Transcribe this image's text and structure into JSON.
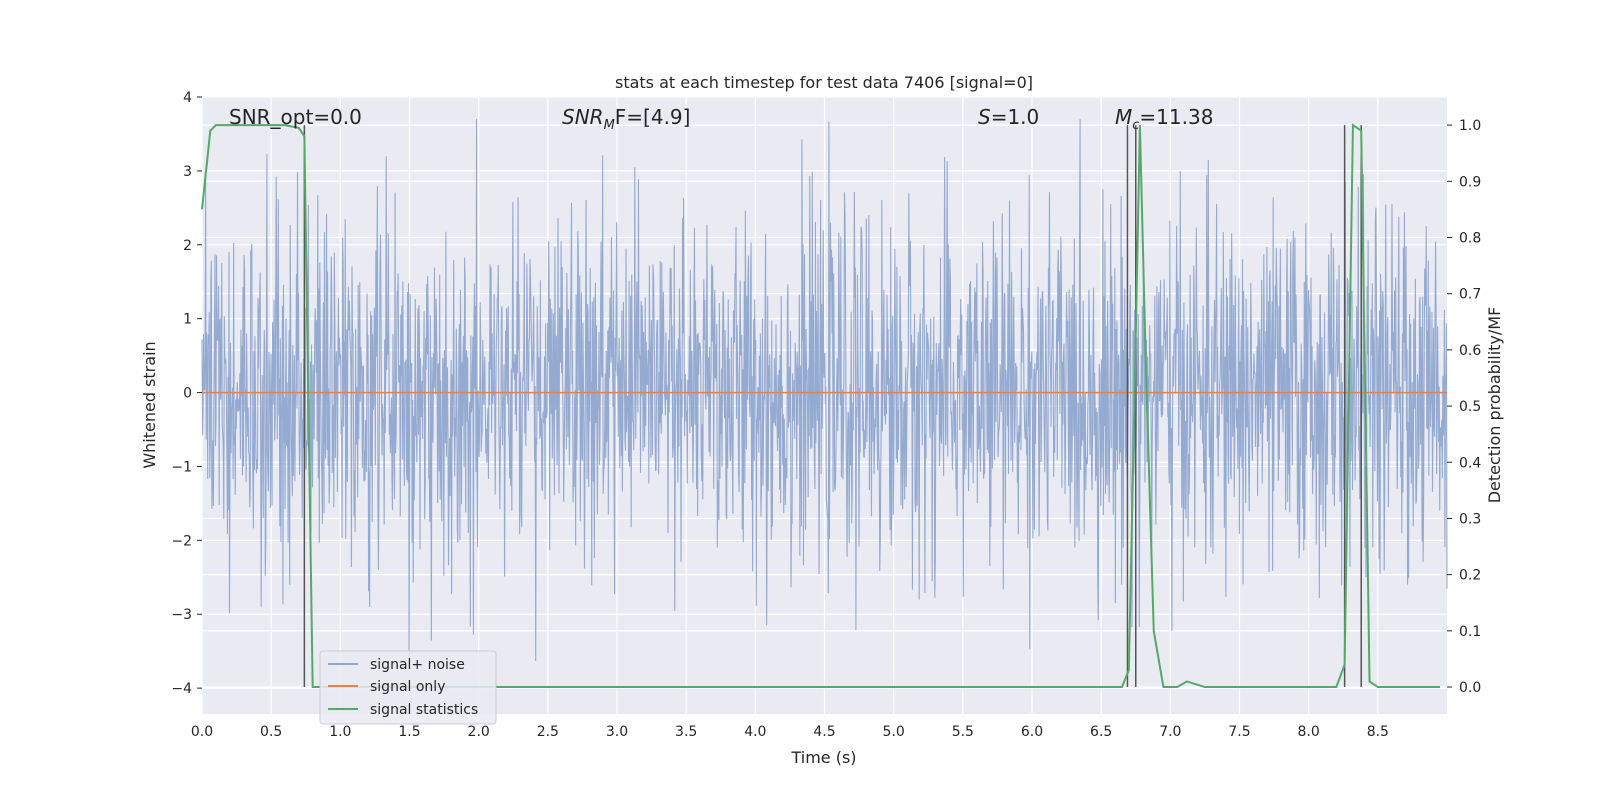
{
  "chart_data": {
    "type": "line",
    "title": "stats at each timestep for test data 7406 [signal=0]",
    "xlabel": "Time (s)",
    "ylabel_left": "Whitened strain",
    "ylabel_right": "Detection probability/MF",
    "xlim": [
      0.0,
      9.0
    ],
    "ylim_left": [
      -4.35,
      4.0
    ],
    "ylim_right": [
      -0.048,
      1.05
    ],
    "x_ticks": [
      "0.0",
      "0.5",
      "1.0",
      "1.5",
      "2.0",
      "2.5",
      "3.0",
      "3.5",
      "4.0",
      "4.5",
      "5.0",
      "5.5",
      "6.0",
      "6.5",
      "7.0",
      "7.5",
      "8.0",
      "8.5"
    ],
    "y_ticks_left": [
      "4",
      "3",
      "2",
      "1",
      "0",
      "−1",
      "−2",
      "−3",
      "−4"
    ],
    "y_ticks_right": [
      "1.0",
      "0.9",
      "0.8",
      "0.7",
      "0.6",
      "0.5",
      "0.4",
      "0.3",
      "0.2",
      "0.1",
      "0.0"
    ],
    "grid": true,
    "legend_position": "lower-left",
    "annotations": {
      "snr_opt": "SNR_opt=0.0",
      "snr_mf_main": "SNR",
      "snr_mf_sub": "M",
      "snr_mf_rest": "F=[4.9]",
      "s_italic": "S",
      "s_rest": "=1.0",
      "mc_italic": "M",
      "mc_sub": "c",
      "mc_rest": "=11.38"
    },
    "series": [
      {
        "name": "signal+ noise",
        "color": "#8fa6cf",
        "description_of_values": "white noise, approx within [-3.8, 3.7]",
        "x_range": [
          0.0,
          9.0
        ]
      },
      {
        "name": "signal only",
        "color": "#dd8452",
        "x": [
          0.0,
          9.0
        ],
        "y": [
          0.0,
          0.0
        ]
      },
      {
        "name": "signal statistics",
        "color": "#55a868",
        "axis": "right",
        "x": [
          0.0,
          0.06,
          0.1,
          0.2,
          0.3,
          0.4,
          0.5,
          0.6,
          0.7,
          0.74,
          0.8,
          0.9,
          1.5,
          2.0,
          3.0,
          4.0,
          5.0,
          6.0,
          6.5,
          6.65,
          6.7,
          6.74,
          6.78,
          6.82,
          6.88,
          6.95,
          7.05,
          7.12,
          7.25,
          7.5,
          7.7,
          8.0,
          8.2,
          8.26,
          8.32,
          8.38,
          8.44,
          8.5,
          8.7,
          8.95
        ],
        "y": [
          0.85,
          0.99,
          1.0,
          1.0,
          1.0,
          1.0,
          1.0,
          1.0,
          0.995,
          0.98,
          0.0,
          0.0,
          0.0,
          0.0,
          0.0,
          0.0,
          0.0,
          0.0,
          0.0,
          0.0,
          0.03,
          0.5,
          1.0,
          0.6,
          0.1,
          0.0,
          0.0,
          0.01,
          0.0,
          0.0,
          0.0,
          0.0,
          0.0,
          0.04,
          1.0,
          0.99,
          0.01,
          0.0,
          0.0,
          0.0
        ]
      }
    ],
    "vertical_lines": {
      "color": "#555555",
      "x": [
        0.74,
        6.69,
        6.75,
        8.26,
        8.38
      ]
    }
  }
}
